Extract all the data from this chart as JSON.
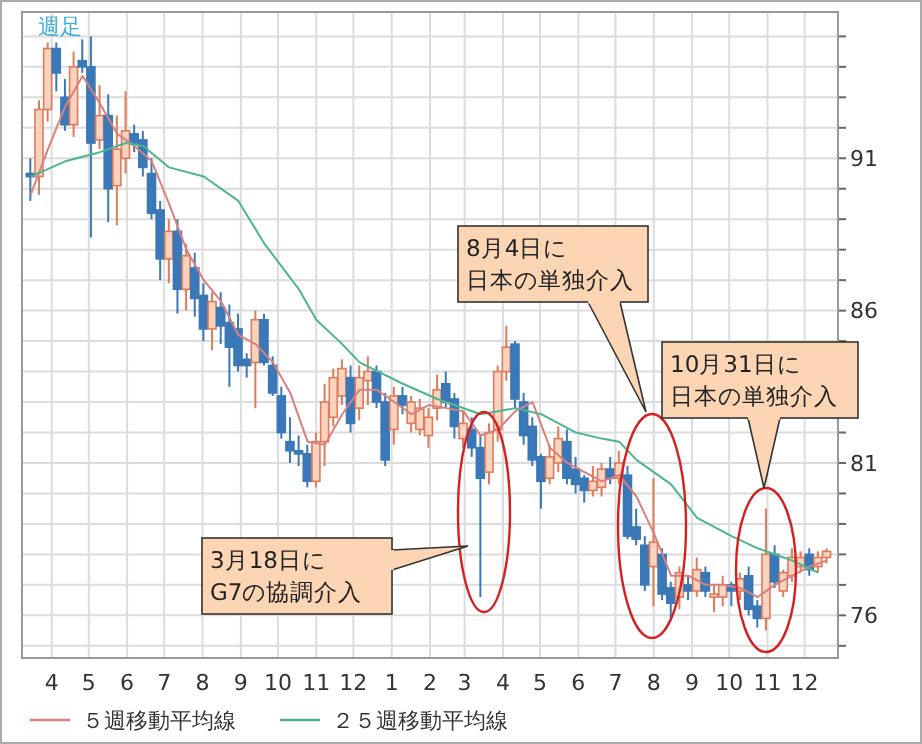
{
  "chart_data": {
    "type": "candlestick",
    "title": "週足",
    "x": [
      "2010-03-15",
      "2010-03-22",
      "2010-03-29",
      "2010-04-05",
      "2010-04-12",
      "2010-04-19",
      "2010-04-26",
      "2010-05-03",
      "2010-05-10",
      "2010-05-17",
      "2010-05-24",
      "2010-05-31",
      "2010-06-07",
      "2010-06-14",
      "2010-06-21",
      "2010-06-28",
      "2010-07-05",
      "2010-07-12",
      "2010-07-19",
      "2010-07-26",
      "2010-08-02",
      "2010-08-09",
      "2010-08-16",
      "2010-08-23",
      "2010-08-30",
      "2010-09-06",
      "2010-09-13",
      "2010-09-20",
      "2010-09-27",
      "2010-10-04",
      "2010-10-11",
      "2010-10-18",
      "2010-10-25",
      "2010-11-01",
      "2010-11-08",
      "2010-11-15",
      "2010-11-22",
      "2010-11-29",
      "2010-12-06",
      "2010-12-13",
      "2010-12-20",
      "2010-12-27",
      "2011-01-03",
      "2011-01-10",
      "2011-01-17",
      "2011-01-24",
      "2011-01-31",
      "2011-02-07",
      "2011-02-14",
      "2011-02-21",
      "2011-02-28",
      "2011-03-07",
      "2011-03-14",
      "2011-03-21",
      "2011-03-28",
      "2011-04-04",
      "2011-04-11",
      "2011-04-18",
      "2011-04-25",
      "2011-05-02",
      "2011-05-09",
      "2011-05-16",
      "2011-05-23",
      "2011-05-30",
      "2011-06-06",
      "2011-06-13",
      "2011-06-20",
      "2011-06-27",
      "2011-07-04",
      "2011-07-11",
      "2011-07-18",
      "2011-07-25",
      "2011-08-01",
      "2011-08-08",
      "2011-08-15",
      "2011-08-22",
      "2011-08-29",
      "2011-09-05",
      "2011-09-12",
      "2011-09-19",
      "2011-09-26",
      "2011-10-03",
      "2011-10-10",
      "2011-10-17",
      "2011-10-24",
      "2011-10-31",
      "2011-11-07",
      "2011-11-14",
      "2011-11-21",
      "2011-11-28",
      "2011-12-05",
      "2011-12-12",
      "2011-12-19"
    ],
    "ohlc": [
      [
        90.5,
        91.0,
        89.6,
        90.4
      ],
      [
        90.4,
        92.9,
        89.8,
        92.6
      ],
      [
        92.6,
        94.8,
        92.2,
        94.6
      ],
      [
        94.6,
        94.8,
        93.2,
        93.8
      ],
      [
        93.0,
        93.6,
        91.9,
        92.1
      ],
      [
        92.1,
        94.5,
        91.7,
        94.0
      ],
      [
        94.2,
        94.9,
        93.8,
        94.0
      ],
      [
        94.0,
        95.0,
        88.4,
        91.5
      ],
      [
        91.6,
        93.4,
        91.3,
        92.4
      ],
      [
        92.4,
        93.1,
        88.9,
        90.0
      ],
      [
        90.1,
        92.4,
        88.8,
        91.3
      ],
      [
        91.0,
        93.2,
        90.5,
        91.9
      ],
      [
        91.8,
        92.1,
        91.2,
        91.5
      ],
      [
        91.6,
        91.9,
        90.4,
        90.7
      ],
      [
        90.5,
        91.0,
        89.0,
        89.2
      ],
      [
        89.3,
        89.6,
        87.0,
        87.7
      ],
      [
        87.7,
        89.0,
        86.9,
        88.6
      ],
      [
        88.6,
        89.0,
        85.9,
        86.7
      ],
      [
        86.7,
        88.2,
        86.0,
        87.8
      ],
      [
        87.4,
        87.9,
        85.8,
        86.4
      ],
      [
        86.5,
        86.9,
        85.0,
        85.4
      ],
      [
        85.4,
        86.6,
        84.7,
        86.3
      ],
      [
        86.1,
        86.6,
        84.9,
        85.5
      ],
      [
        85.6,
        86.2,
        83.5,
        84.8
      ],
      [
        85.4,
        85.9,
        84.0,
        84.2
      ],
      [
        84.4,
        84.6,
        83.8,
        84.2
      ],
      [
        84.3,
        86.0,
        82.8,
        85.7
      ],
      [
        85.7,
        85.9,
        84.2,
        84.3
      ],
      [
        84.2,
        84.5,
        83.2,
        83.3
      ],
      [
        83.2,
        83.5,
        81.8,
        82.0
      ],
      [
        81.7,
        82.5,
        81.0,
        81.4
      ],
      [
        81.4,
        81.9,
        80.9,
        81.3
      ],
      [
        81.3,
        81.6,
        80.2,
        80.4
      ],
      [
        80.4,
        82.0,
        80.2,
        81.7
      ],
      [
        81.7,
        83.6,
        80.9,
        83.0
      ],
      [
        82.5,
        84.1,
        82.2,
        83.8
      ],
      [
        83.2,
        84.4,
        82.9,
        84.1
      ],
      [
        83.8,
        84.2,
        82.0,
        82.3
      ],
      [
        82.8,
        84.2,
        82.4,
        83.8
      ],
      [
        83.7,
        84.5,
        82.9,
        84.0
      ],
      [
        84.0,
        84.2,
        82.8,
        83.0
      ],
      [
        83.0,
        83.3,
        80.9,
        81.1
      ],
      [
        82.1,
        83.5,
        81.6,
        83.2
      ],
      [
        83.2,
        83.5,
        82.6,
        82.9
      ],
      [
        82.3,
        83.2,
        82.0,
        83.0
      ],
      [
        82.1,
        83.1,
        81.9,
        82.8
      ],
      [
        81.9,
        82.8,
        81.5,
        82.5
      ],
      [
        82.8,
        83.9,
        82.4,
        83.4
      ],
      [
        83.6,
        84.0,
        82.8,
        83.0
      ],
      [
        83.1,
        83.3,
        81.8,
        82.2
      ],
      [
        81.8,
        82.7,
        81.5,
        82.3
      ],
      [
        82.1,
        82.5,
        81.2,
        81.5
      ],
      [
        81.5,
        81.9,
        76.6,
        80.5
      ],
      [
        80.7,
        82.3,
        80.3,
        82.0
      ],
      [
        82.1,
        84.2,
        81.7,
        84.0
      ],
      [
        84.0,
        85.5,
        83.7,
        84.8
      ],
      [
        84.9,
        85.0,
        82.8,
        83.1
      ],
      [
        83.0,
        83.3,
        81.6,
        81.9
      ],
      [
        82.2,
        82.5,
        80.9,
        81.1
      ],
      [
        81.2,
        81.3,
        79.5,
        80.4
      ],
      [
        80.5,
        81.6,
        80.3,
        81.2
      ],
      [
        81.0,
        82.2,
        80.7,
        81.8
      ],
      [
        81.7,
        82.1,
        80.3,
        80.5
      ],
      [
        80.8,
        81.2,
        80.0,
        80.3
      ],
      [
        80.5,
        80.6,
        79.7,
        80.1
      ],
      [
        80.1,
        80.9,
        79.9,
        80.4
      ],
      [
        80.2,
        81.0,
        79.9,
        80.8
      ],
      [
        80.8,
        81.2,
        80.3,
        80.5
      ],
      [
        80.5,
        81.4,
        80.3,
        81.0
      ],
      [
        80.6,
        80.9,
        78.5,
        78.6
      ],
      [
        78.9,
        79.5,
        78.3,
        78.5
      ],
      [
        78.3,
        78.6,
        76.8,
        77.0
      ],
      [
        77.6,
        80.5,
        76.3,
        78.4
      ],
      [
        78.0,
        78.2,
        76.5,
        76.7
      ],
      [
        76.9,
        77.1,
        75.9,
        76.4
      ],
      [
        76.6,
        77.6,
        76.2,
        77.4
      ],
      [
        77.0,
        77.3,
        76.5,
        76.8
      ],
      [
        76.8,
        77.9,
        76.6,
        77.5
      ],
      [
        77.4,
        77.6,
        76.6,
        76.8
      ],
      [
        76.6,
        77.0,
        76.1,
        76.7
      ],
      [
        76.6,
        77.3,
        76.3,
        77.0
      ],
      [
        77.0,
        77.1,
        76.3,
        76.8
      ],
      [
        76.8,
        77.4,
        76.5,
        77.2
      ],
      [
        77.3,
        77.6,
        76.0,
        76.2
      ],
      [
        76.3,
        76.5,
        75.6,
        75.9
      ],
      [
        75.9,
        79.5,
        75.5,
        78.0
      ],
      [
        78.0,
        78.3,
        76.9,
        77.1
      ],
      [
        76.8,
        77.5,
        76.6,
        77.4
      ],
      [
        77.3,
        78.2,
        77.1,
        77.9
      ],
      [
        77.6,
        78.1,
        77.4,
        77.9
      ],
      [
        78.0,
        78.2,
        77.3,
        77.5
      ],
      [
        77.6,
        78.1,
        77.4,
        77.9
      ],
      [
        77.9,
        78.2,
        77.7,
        78.1
      ]
    ],
    "series": [
      {
        "name": "５週移動平均線",
        "type": "line",
        "color": "#d9807f",
        "x": [
          "2010-03-15",
          "2010-03-29",
          "2010-04-12",
          "2010-04-26",
          "2010-05-10",
          "2010-05-24",
          "2010-06-07",
          "2010-06-21",
          "2010-07-05",
          "2010-07-19",
          "2010-08-02",
          "2010-08-16",
          "2010-08-30",
          "2010-09-13",
          "2010-09-27",
          "2010-10-11",
          "2010-10-25",
          "2010-11-08",
          "2010-11-22",
          "2010-12-06",
          "2010-12-20",
          "2011-01-03",
          "2011-01-17",
          "2011-01-31",
          "2011-02-14",
          "2011-02-28",
          "2011-03-14",
          "2011-03-28",
          "2011-04-11",
          "2011-04-25",
          "2011-05-09",
          "2011-05-23",
          "2011-06-06",
          "2011-06-20",
          "2011-07-04",
          "2011-07-18",
          "2011-08-01",
          "2011-08-15",
          "2011-08-29",
          "2011-09-12",
          "2011-09-26",
          "2011-10-10",
          "2011-10-24",
          "2011-11-07",
          "2011-11-21",
          "2011-12-05",
          "2011-12-19"
        ],
        "values": [
          89.8,
          91.3,
          92.7,
          93.7,
          92.8,
          91.8,
          91.4,
          90.9,
          89.5,
          88.0,
          87.0,
          86.3,
          85.2,
          84.9,
          84.3,
          83.3,
          81.7,
          81.6,
          82.6,
          83.4,
          83.4,
          83.0,
          82.6,
          82.9,
          82.8,
          82.7,
          81.9,
          82.1,
          82.7,
          83.0,
          81.5,
          81.0,
          80.7,
          80.4,
          80.6,
          79.9,
          78.7,
          77.3,
          77.3,
          77.0,
          77.0,
          76.9,
          76.6,
          77.0,
          77.3,
          77.6,
          77.8
        ]
      },
      {
        "name": "２５週移動平均線",
        "type": "line",
        "color": "#4fb58c",
        "x": [
          "2010-03-15",
          "2010-04-12",
          "2010-05-10",
          "2010-05-31",
          "2010-06-14",
          "2010-07-05",
          "2010-08-02",
          "2010-08-30",
          "2010-09-20",
          "2010-10-18",
          "2010-11-01",
          "2010-11-22",
          "2010-12-06",
          "2011-01-10",
          "2011-02-07",
          "2011-03-14",
          "2011-03-28",
          "2011-04-11",
          "2011-05-02",
          "2011-05-16",
          "2011-05-30",
          "2011-06-20",
          "2011-07-04",
          "2011-07-18",
          "2011-08-15",
          "2011-09-05",
          "2011-10-03",
          "2011-10-24",
          "2011-11-21",
          "2011-12-12"
        ],
        "values": [
          90.4,
          90.9,
          91.2,
          91.5,
          91.4,
          90.7,
          90.4,
          89.6,
          88.2,
          86.7,
          85.7,
          84.9,
          84.3,
          83.6,
          83.1,
          82.6,
          82.7,
          82.8,
          82.6,
          82.3,
          82.0,
          81.8,
          81.7,
          81.1,
          80.3,
          79.2,
          78.6,
          78.2,
          77.8,
          77.4
        ]
      }
    ],
    "xlim": [
      "2010-03-08",
      "2011-12-28"
    ],
    "xticks": [
      {
        "value": "2010-04-01",
        "label": "4"
      },
      {
        "value": "2010-05-01",
        "label": "5"
      },
      {
        "value": "2010-06-01",
        "label": "6"
      },
      {
        "value": "2010-07-01",
        "label": "7"
      },
      {
        "value": "2010-08-01",
        "label": "8"
      },
      {
        "value": "2010-09-01",
        "label": "9"
      },
      {
        "value": "2010-10-01",
        "label": "10"
      },
      {
        "value": "2010-11-01",
        "label": "11"
      },
      {
        "value": "2010-12-01",
        "label": "12"
      },
      {
        "value": "2011-01-01",
        "label": "1"
      },
      {
        "value": "2011-02-01",
        "label": "2"
      },
      {
        "value": "2011-03-01",
        "label": "3"
      },
      {
        "value": "2011-04-01",
        "label": "4"
      },
      {
        "value": "2011-05-01",
        "label": "5"
      },
      {
        "value": "2011-06-01",
        "label": "6"
      },
      {
        "value": "2011-07-01",
        "label": "7"
      },
      {
        "value": "2011-08-01",
        "label": "8"
      },
      {
        "value": "2011-09-01",
        "label": "9"
      },
      {
        "value": "2011-10-01",
        "label": "10"
      },
      {
        "value": "2011-11-01",
        "label": "11"
      },
      {
        "value": "2011-12-01",
        "label": "12"
      }
    ],
    "ylim": [
      74.6,
      95.8
    ],
    "yticks": [
      {
        "value": 75,
        "label": null
      },
      76,
      {
        "value": 77,
        "label": null
      },
      {
        "value": 78,
        "label": null
      },
      {
        "value": 79,
        "label": null
      },
      {
        "value": 80,
        "label": null
      },
      81,
      {
        "value": 82,
        "label": null
      },
      {
        "value": 83,
        "label": null
      },
      {
        "value": 84,
        "label": null
      },
      {
        "value": 85,
        "label": null
      },
      86,
      {
        "value": 87,
        "label": null
      },
      {
        "value": 88,
        "label": null
      },
      {
        "value": 89,
        "label": null
      },
      {
        "value": 90,
        "label": null
      },
      91,
      {
        "value": 92,
        "label": null
      },
      {
        "value": 93,
        "label": null
      },
      {
        "value": 94,
        "label": null
      },
      {
        "value": 95,
        "label": null
      }
    ],
    "grid": true,
    "legend": "bottom",
    "annotations": [
      "3月18日に",
      "G7の協調介入",
      "8月4日に",
      "日本の単独介入",
      "10月31日に",
      "日本の単独介入"
    ]
  }
}
